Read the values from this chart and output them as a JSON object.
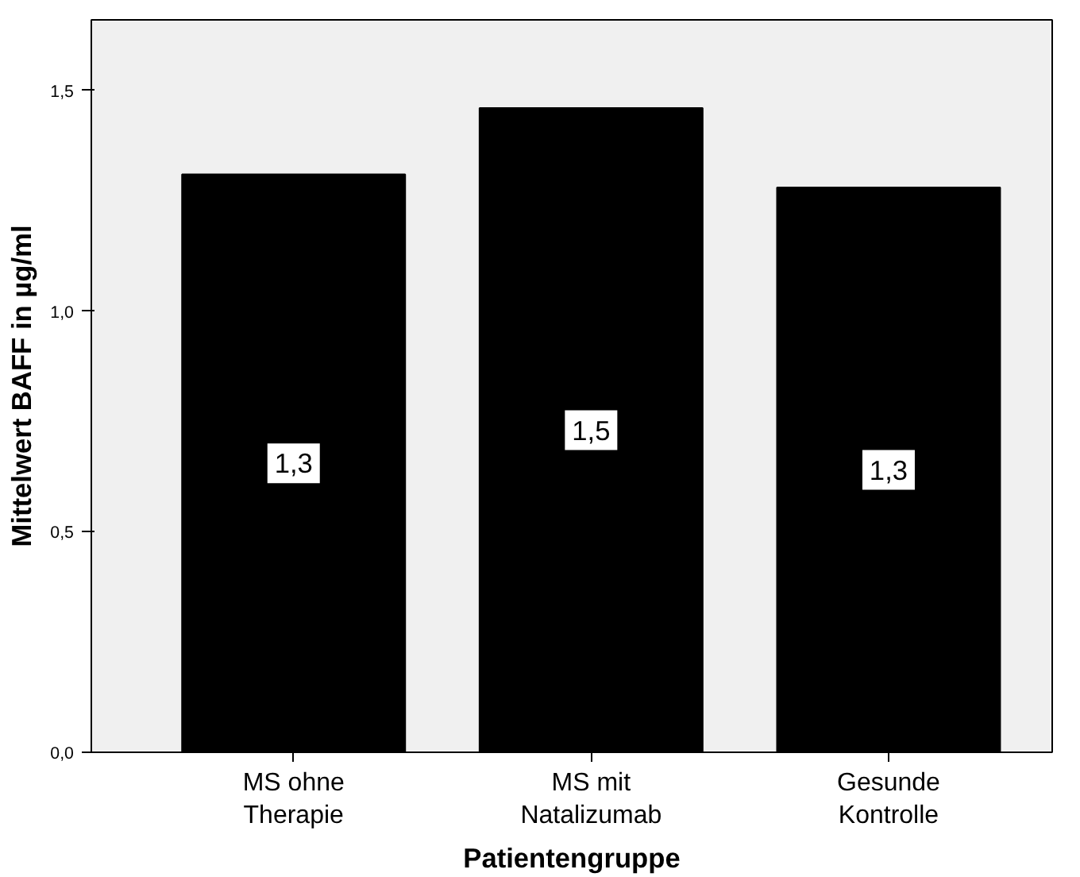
{
  "chart_data": {
    "type": "bar",
    "xlabel": "Patientengruppe",
    "ylabel": "Mittelwert BAFF in µg/ml",
    "categories": [
      "MS ohne\nTherapie",
      "MS mit\nNatalizumab",
      "Gesunde\nKontrolle"
    ],
    "values": [
      1.31,
      1.46,
      1.28
    ],
    "color": "#000000",
    "value_labels": [
      "1,3",
      "1,5",
      "1,3"
    ],
    "ylim": [
      0,
      1.66
    ],
    "yticks": [
      {
        "value": 0,
        "label": "0,0"
      },
      {
        "value": 0.5,
        "label": "0,5"
      },
      {
        "value": 1.0,
        "label": "1,0"
      },
      {
        "value": 1.5,
        "label": "1,5"
      }
    ],
    "grid": false
  }
}
